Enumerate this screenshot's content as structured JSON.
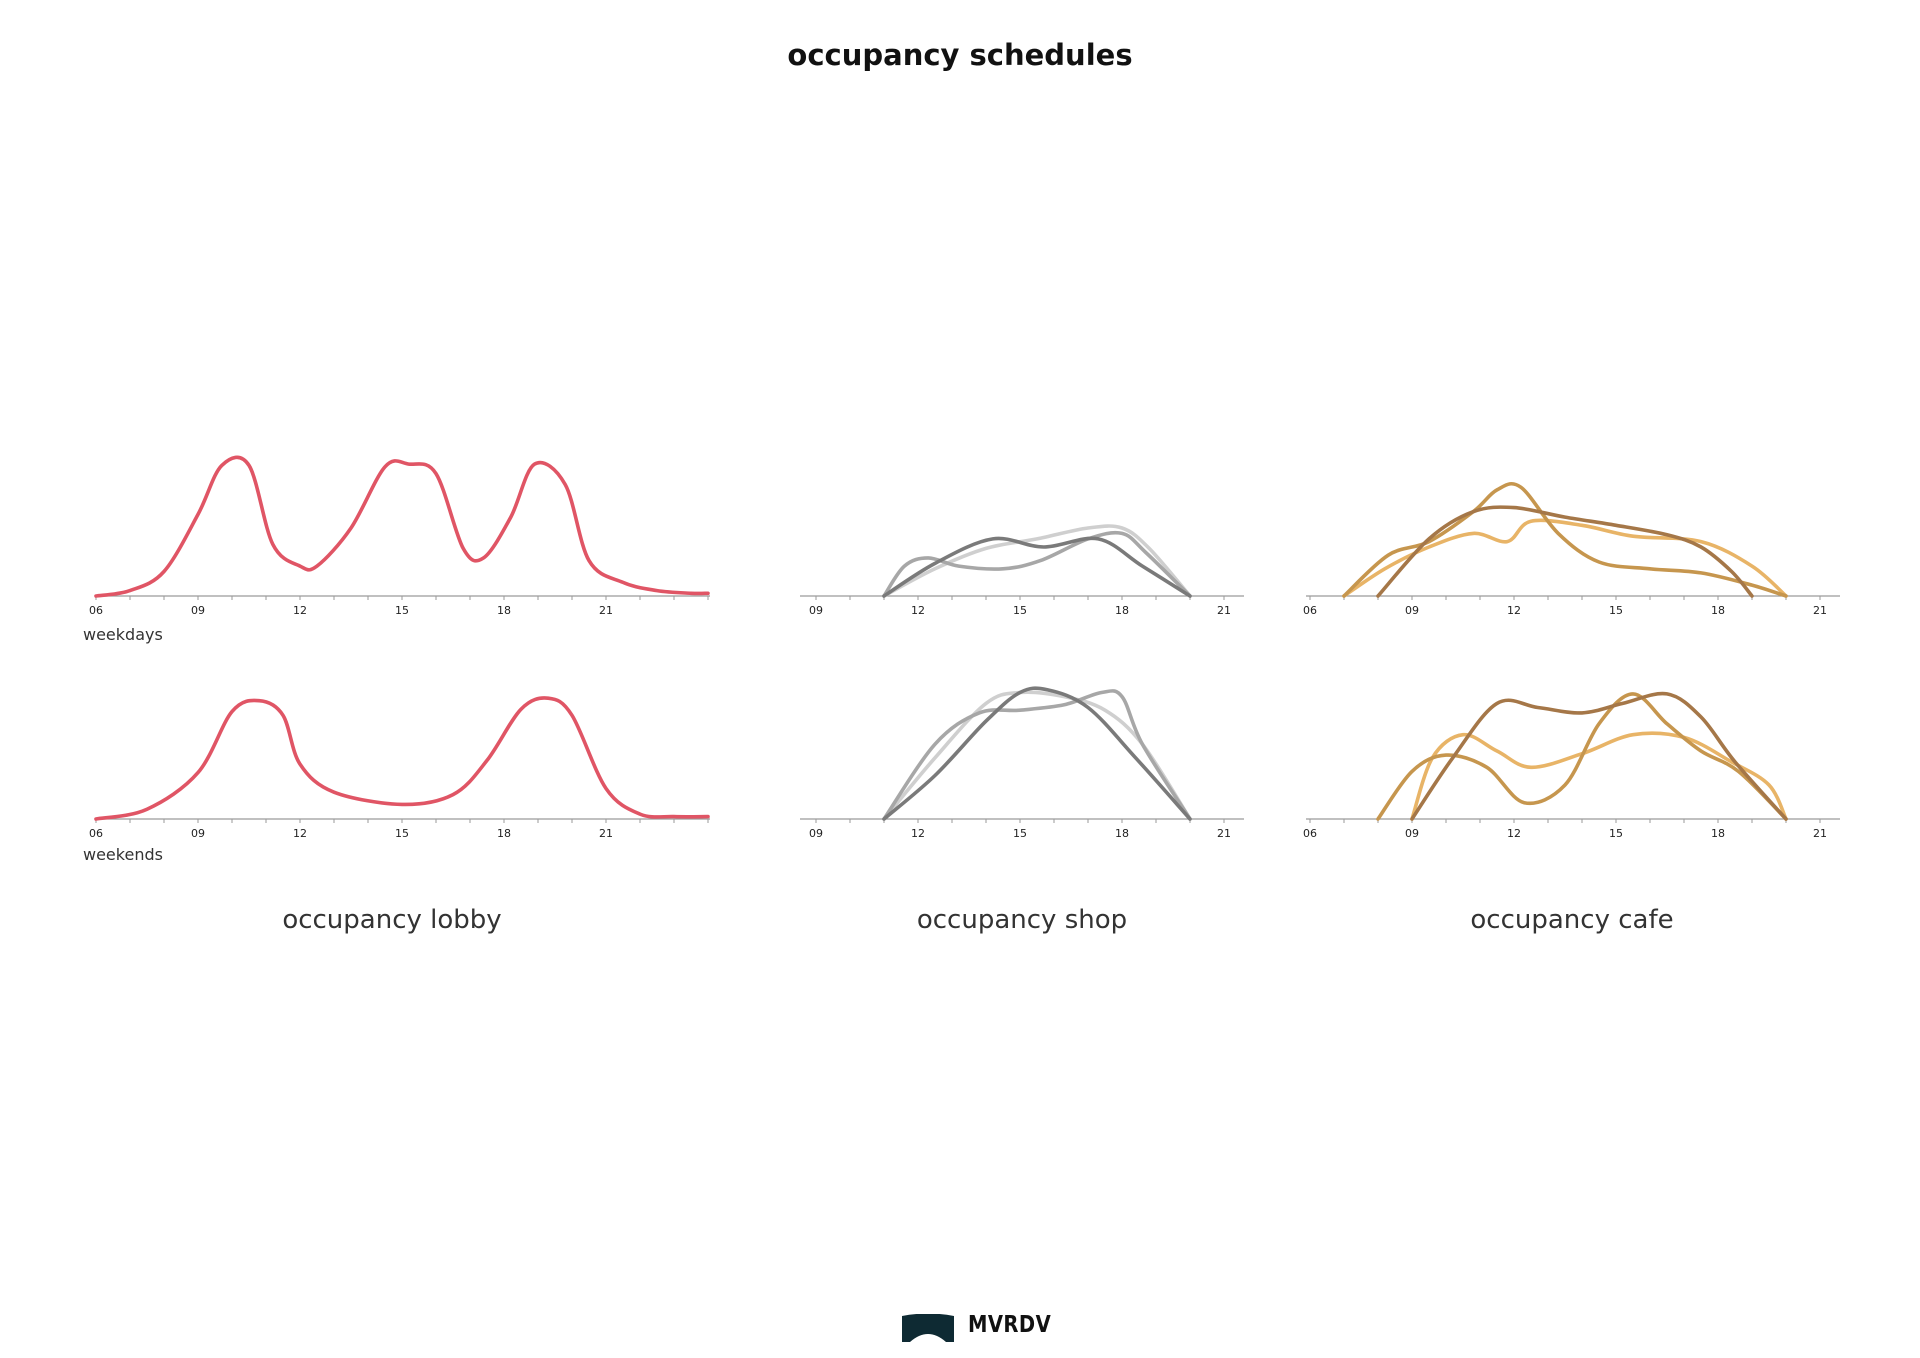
{
  "page": {
    "title": "occupancy schedules",
    "row_labels": [
      "weekdays",
      "weekends"
    ],
    "captions": [
      "occupancy lobby",
      "occupancy shop",
      "occupancy cafe"
    ],
    "logo_text": "MVRDV"
  },
  "chart_data": [
    {
      "type": "line",
      "title": "occupancy lobby",
      "row": "weekdays",
      "xlim": [
        6,
        24
      ],
      "ylim": [
        0,
        1
      ],
      "xticks": [
        "06",
        "09",
        "12",
        "15",
        "18",
        "21"
      ],
      "series": [
        {
          "color": "#e05565",
          "x": [
            6,
            7,
            8,
            9,
            9.7,
            10.5,
            11.2,
            12,
            12.5,
            13.5,
            14.5,
            15.2,
            16,
            16.8,
            17.4,
            18.2,
            18.9,
            19.8,
            20.5,
            21.5,
            22.5,
            23.5,
            24
          ],
          "y": [
            0,
            0.04,
            0.18,
            0.6,
            0.96,
            0.96,
            0.38,
            0.22,
            0.22,
            0.5,
            0.95,
            0.97,
            0.9,
            0.35,
            0.28,
            0.58,
            0.97,
            0.82,
            0.26,
            0.1,
            0.04,
            0.02,
            0.02
          ]
        }
      ]
    },
    {
      "type": "line",
      "title": "occupancy lobby",
      "row": "weekends",
      "xlim": [
        6,
        24
      ],
      "ylim": [
        0,
        1
      ],
      "xticks": [
        "06",
        "09",
        "12",
        "15",
        "18",
        "21"
      ],
      "series": [
        {
          "color": "#e05565",
          "x": [
            6,
            7.5,
            9,
            10,
            10.8,
            11.5,
            12,
            13,
            15,
            16.5,
            17.5,
            18.5,
            19.3,
            20,
            21,
            22,
            23,
            24
          ],
          "y": [
            0,
            0.08,
            0.38,
            0.88,
            0.97,
            0.85,
            0.45,
            0.22,
            0.12,
            0.2,
            0.48,
            0.9,
            0.99,
            0.85,
            0.25,
            0.04,
            0.02,
            0.02
          ]
        }
      ]
    },
    {
      "type": "line",
      "title": "occupancy shop",
      "row": "weekdays",
      "xlim": [
        9,
        22
      ],
      "ylim": [
        0,
        1
      ],
      "xticks": [
        "09",
        "12",
        "15",
        "18",
        "21"
      ],
      "series": [
        {
          "color": "#cfcfcf",
          "x": [
            11,
            12.5,
            14,
            15.5,
            17,
            18,
            18.8,
            20
          ],
          "y": [
            0,
            0.2,
            0.35,
            0.42,
            0.5,
            0.5,
            0.35,
            0
          ]
        },
        {
          "color": "#a7a7a7",
          "x": [
            11,
            11.6,
            12.3,
            13.2,
            14.5,
            15.6,
            17,
            18,
            18.7,
            20
          ],
          "y": [
            0,
            0.22,
            0.28,
            0.22,
            0.2,
            0.26,
            0.42,
            0.46,
            0.32,
            0
          ]
        },
        {
          "color": "#7a7a7a",
          "x": [
            11,
            12.5,
            14.2,
            15.7,
            17.3,
            18.6,
            20
          ],
          "y": [
            0,
            0.24,
            0.42,
            0.36,
            0.42,
            0.22,
            0
          ]
        }
      ]
    },
    {
      "type": "line",
      "title": "occupancy shop",
      "row": "weekends",
      "xlim": [
        9,
        22
      ],
      "ylim": [
        0,
        1
      ],
      "xticks": [
        "09",
        "12",
        "15",
        "18",
        "21"
      ],
      "series": [
        {
          "color": "#cfcfcf",
          "x": [
            11,
            12.5,
            14,
            15,
            16.3,
            17.5,
            18.6,
            20
          ],
          "y": [
            0,
            0.45,
            0.85,
            0.93,
            0.9,
            0.8,
            0.55,
            0
          ]
        },
        {
          "color": "#a7a7a7",
          "x": [
            11,
            12.5,
            13.8,
            15,
            16.3,
            17.4,
            18,
            18.6,
            20
          ],
          "y": [
            0,
            0.55,
            0.78,
            0.8,
            0.84,
            0.93,
            0.9,
            0.55,
            0
          ]
        },
        {
          "color": "#7a7a7a",
          "x": [
            11,
            12.5,
            14,
            15,
            15.8,
            17,
            18.4,
            20
          ],
          "y": [
            0,
            0.32,
            0.72,
            0.93,
            0.95,
            0.82,
            0.45,
            0
          ]
        }
      ]
    },
    {
      "type": "line",
      "title": "occupancy cafe",
      "row": "weekdays",
      "xlim": [
        6,
        21.5
      ],
      "ylim": [
        0,
        1
      ],
      "xticks": [
        "06",
        "09",
        "12",
        "15",
        "18",
        "21"
      ],
      "series": [
        {
          "color": "#e8b467",
          "x": [
            7,
            8.2,
            9.5,
            10.8,
            11.8,
            12.5,
            14,
            15.5,
            17.5,
            19,
            20
          ],
          "y": [
            0,
            0.2,
            0.36,
            0.46,
            0.4,
            0.55,
            0.52,
            0.44,
            0.4,
            0.22,
            0
          ]
        },
        {
          "color": "#c6964e",
          "x": [
            7,
            8.3,
            9.5,
            10.8,
            11.5,
            12.2,
            13.3,
            14.5,
            16,
            17.5,
            19,
            20
          ],
          "y": [
            0,
            0.3,
            0.4,
            0.62,
            0.78,
            0.8,
            0.46,
            0.25,
            0.2,
            0.17,
            0.08,
            0
          ]
        },
        {
          "color": "#a57748",
          "x": [
            8,
            9.5,
            10.8,
            12,
            13.5,
            15,
            16.5,
            17.5,
            18.4,
            19
          ],
          "y": [
            0,
            0.42,
            0.62,
            0.65,
            0.58,
            0.52,
            0.45,
            0.36,
            0.18,
            0
          ]
        }
      ]
    },
    {
      "type": "line",
      "title": "occupancy cafe",
      "row": "weekends",
      "xlim": [
        6,
        21.5
      ],
      "ylim": [
        0,
        1
      ],
      "xticks": [
        "06",
        "09",
        "12",
        "15",
        "18",
        "21"
      ],
      "series": [
        {
          "color": "#e8b467",
          "x": [
            9,
            9.6,
            10.5,
            11.5,
            12.5,
            14,
            15.5,
            17,
            18.4,
            19.5,
            20
          ],
          "y": [
            0,
            0.45,
            0.62,
            0.5,
            0.38,
            0.48,
            0.62,
            0.6,
            0.42,
            0.25,
            0
          ]
        },
        {
          "color": "#c6964e",
          "x": [
            8,
            9,
            10,
            11.2,
            12.3,
            13.5,
            14.5,
            15.5,
            16.5,
            17.5,
            18.6,
            20
          ],
          "y": [
            0,
            0.35,
            0.47,
            0.38,
            0.12,
            0.25,
            0.7,
            0.92,
            0.7,
            0.5,
            0.35,
            0
          ]
        },
        {
          "color": "#a57748",
          "x": [
            9,
            10.2,
            11.5,
            12.7,
            14,
            15.2,
            16.5,
            17.5,
            18.5,
            20
          ],
          "y": [
            0,
            0.45,
            0.85,
            0.82,
            0.78,
            0.85,
            0.92,
            0.75,
            0.42,
            0
          ]
        }
      ]
    }
  ]
}
